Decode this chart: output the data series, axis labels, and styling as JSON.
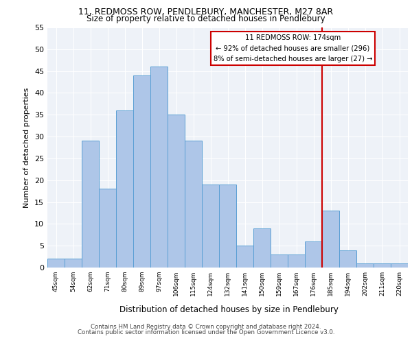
{
  "title_line1": "11, REDMOSS ROW, PENDLEBURY, MANCHESTER, M27 8AR",
  "title_line2": "Size of property relative to detached houses in Pendlebury",
  "xlabel": "Distribution of detached houses by size in Pendlebury",
  "ylabel": "Number of detached properties",
  "footer_line1": "Contains HM Land Registry data © Crown copyright and database right 2024.",
  "footer_line2": "Contains public sector information licensed under the Open Government Licence v3.0.",
  "annotation_line1": "11 REDMOSS ROW: 174sqm",
  "annotation_line2": "← 92% of detached houses are smaller (296)",
  "annotation_line3": "8% of semi-detached houses are larger (27) →",
  "bar_labels": [
    "45sqm",
    "54sqm",
    "62sqm",
    "71sqm",
    "80sqm",
    "89sqm",
    "97sqm",
    "106sqm",
    "115sqm",
    "124sqm",
    "132sqm",
    "141sqm",
    "150sqm",
    "159sqm",
    "167sqm",
    "176sqm",
    "185sqm",
    "194sqm",
    "202sqm",
    "211sqm",
    "220sqm"
  ],
  "bar_values": [
    2,
    2,
    29,
    18,
    36,
    44,
    46,
    35,
    29,
    19,
    19,
    5,
    9,
    3,
    3,
    6,
    13,
    4,
    1,
    1,
    1
  ],
  "bar_color": "#aec6e8",
  "bar_edge_color": "#5a9fd4",
  "vline_x": 15.5,
  "vline_color": "#cc0000",
  "annotation_box_color": "#cc0000",
  "background_color": "#eef2f8",
  "ylim": [
    0,
    55
  ],
  "yticks": [
    0,
    5,
    10,
    15,
    20,
    25,
    30,
    35,
    40,
    45,
    50,
    55
  ]
}
